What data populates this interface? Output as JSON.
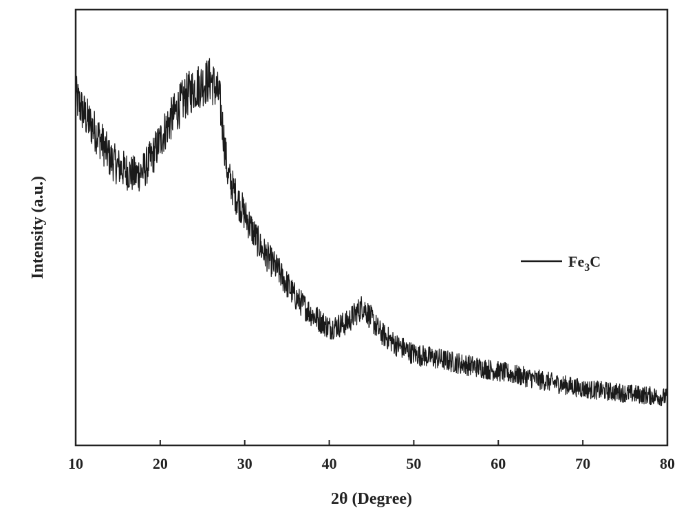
{
  "chart_data": {
    "type": "line",
    "title": "",
    "xlabel": "2θ  (Degree)",
    "ylabel": "Intensity (a.u.)",
    "xlim": [
      10,
      80
    ],
    "ylim": [
      0,
      100
    ],
    "x_ticks": [
      10,
      20,
      30,
      40,
      50,
      60,
      70,
      80
    ],
    "y_ticks_shown": false,
    "grid": false,
    "legend_position": "middle-right",
    "series": [
      {
        "name": "Fe3C",
        "legend_main": "Fe",
        "legend_sub": "3",
        "legend_tail": "C",
        "color": "#1a1a1a",
        "x": [
          10,
          11,
          12,
          13,
          14,
          15,
          16,
          17,
          18,
          19,
          20,
          21,
          22,
          23,
          24,
          25,
          26,
          27,
          28,
          29,
          30,
          31,
          32,
          34,
          36,
          38,
          40,
          42,
          43,
          44,
          45,
          46,
          48,
          50,
          55,
          60,
          65,
          70,
          75,
          80
        ],
        "y": [
          80,
          76,
          73,
          70,
          66,
          64,
          63,
          62,
          63,
          66,
          70,
          74,
          77,
          80,
          82,
          83,
          84,
          80,
          62,
          57,
          53,
          49,
          45,
          40,
          34,
          30,
          27,
          28,
          30,
          32,
          29,
          26,
          23,
          21,
          19,
          17,
          15,
          13,
          12,
          11
        ]
      }
    ]
  }
}
